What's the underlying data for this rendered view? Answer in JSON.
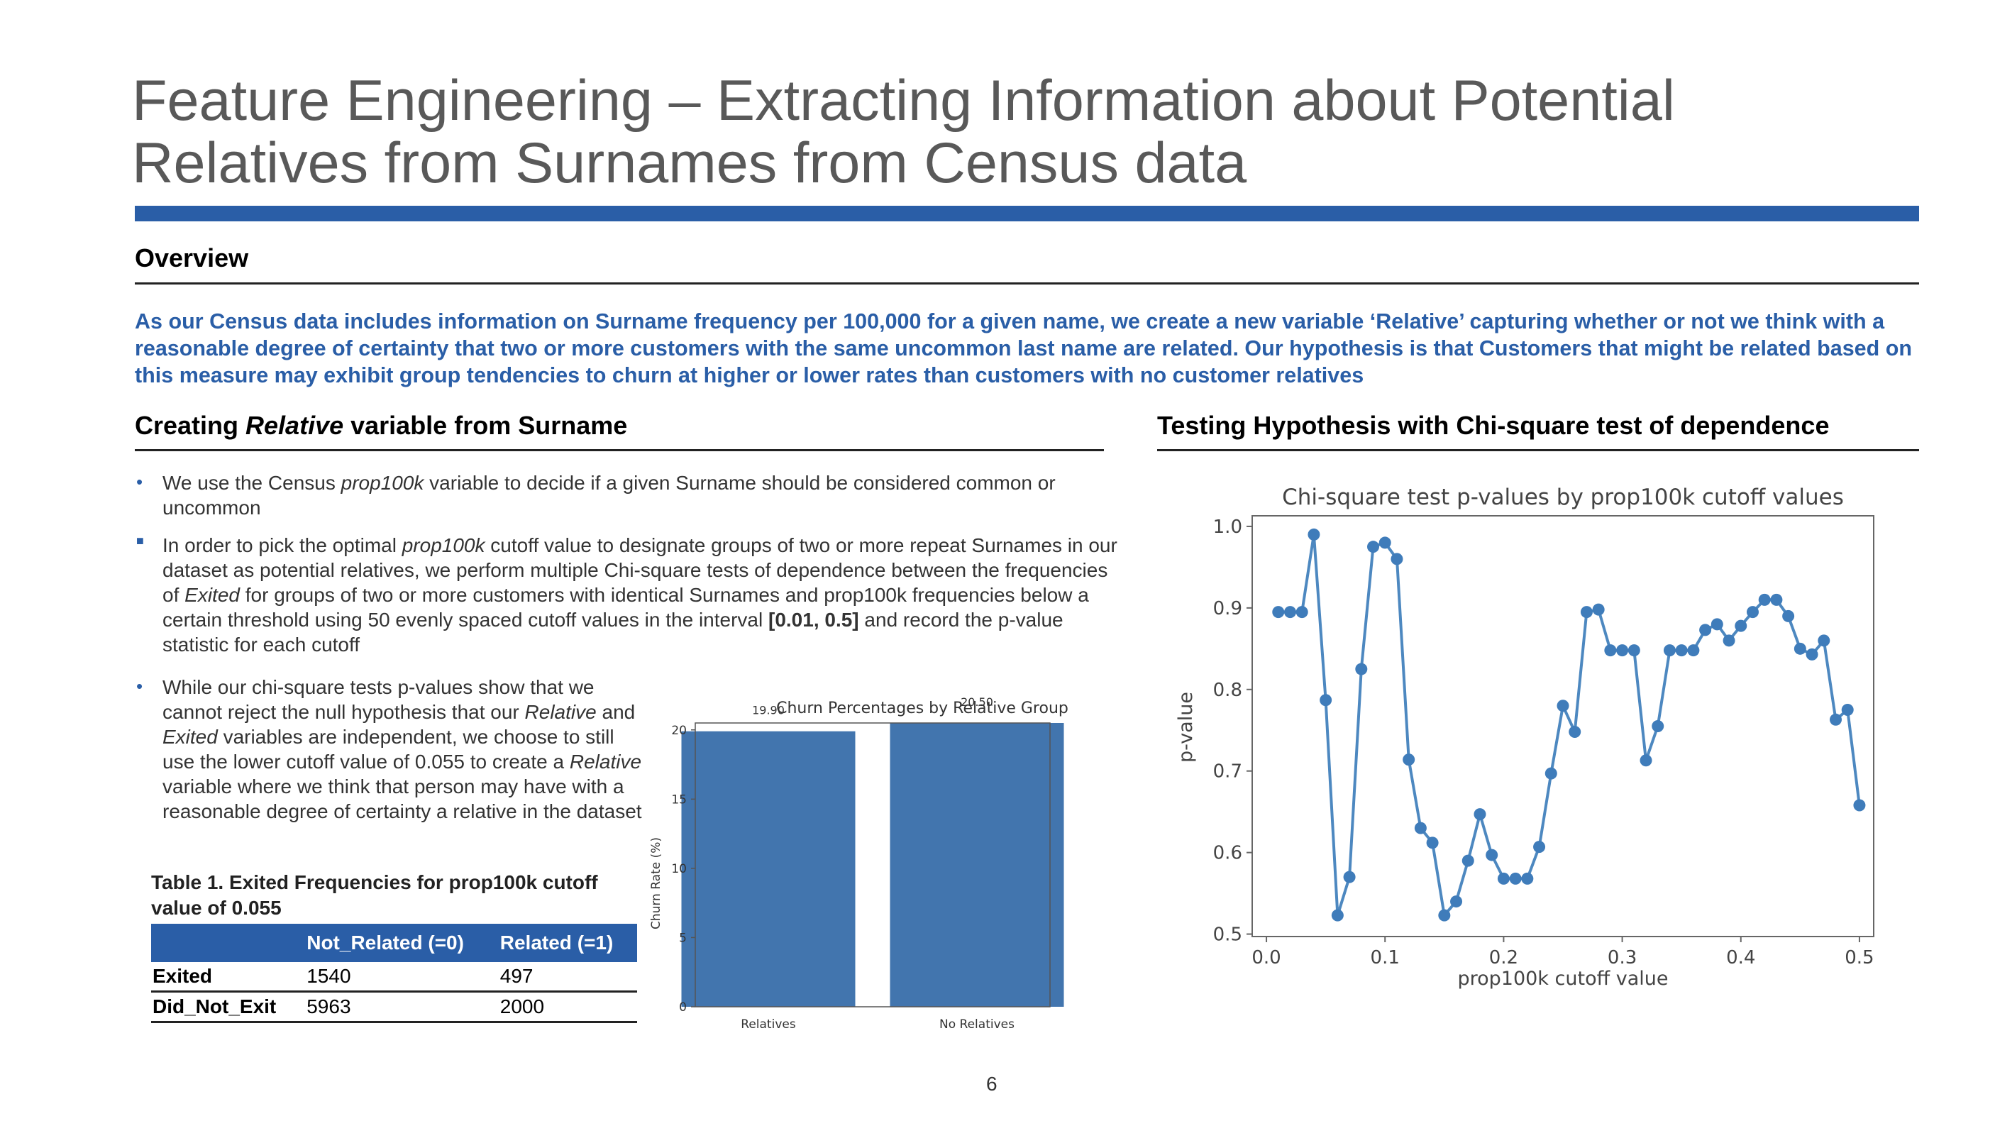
{
  "slide": {
    "title_line1": "Feature Engineering – Extracting Information about Potential",
    "title_line2": "Relatives from Surnames from Census data",
    "overview_title": "Overview",
    "overview_text": "As our Census data includes information on Surname frequency per 100,000 for a given name, we create a new variable ‘Relative’ capturing whether or not we think with a reasonable degree of certainty that two or more customers with the same uncommon last name are related. Our hypothesis is that Customers that might be related based on this measure may exhibit group tendencies to churn at higher or lower rates than customers with no customer relatives",
    "left_title_pre": "Creating ",
    "left_title_em": "Relative",
    "left_title_post": " variable from Surname",
    "right_title": "Testing Hypothesis with Chi-square test of dependence",
    "page_number": "6",
    "colors": {
      "accent": "#2a5ea7",
      "bar": "#4275ae",
      "line": "#4d88c0",
      "title_gray": "#595959"
    }
  },
  "bullets": {
    "b1_a": "We use the Census ",
    "b1_em": "prop100k",
    "b1_b": " variable to decide if a given Surname should be considered common or uncommon",
    "b2_a": "In order to pick the optimal ",
    "b2_em1": "prop100k",
    "b2_b": " cutoff value to designate groups of two or more repeat Surnames in our dataset as potential relatives, we perform multiple Chi-square tests of dependence between the frequencies of ",
    "b2_em2": "Exited",
    "b2_c": " for groups of two or more customers with identical Surnames and prop100k frequencies below a certain threshold using 50 evenly spaced cutoff values in the interval ",
    "b2_strong": "[0.01, 0.5]",
    "b2_d": " and record the p-value statistic for each cutoff",
    "b3_a": "While our chi-square tests p-values show that we cannot reject the null hypothesis that our ",
    "b3_em1": "Relative",
    "b3_b": " and ",
    "b3_em2": "Exited",
    "b3_c": " variables are independent, we choose to still use the lower cutoff value of 0.055 to create a ",
    "b3_em3": "Relative",
    "b3_d": " variable where we think that person may have with a reasonable degree of certainty a relative in the dataset"
  },
  "table": {
    "caption": "Table 1. Exited Frequencies for prop100k cutoff value of 0.055",
    "headers": [
      "",
      "Not_Related (=0)",
      "Related (=1)"
    ],
    "rows": [
      [
        "Exited",
        "1540",
        "497"
      ],
      [
        "Did_Not_Exit",
        "5963",
        "2000"
      ]
    ]
  },
  "chart_data": [
    {
      "type": "bar",
      "title": "Churn Percentages by Relative Group",
      "categories": [
        "Relatives",
        "No Relatives"
      ],
      "values": [
        19.9,
        20.5
      ],
      "data_labels": [
        "19.90",
        "20.50"
      ],
      "xlabel": "",
      "ylabel": "Churn Rate (%)",
      "ylim": [
        0,
        20.5
      ],
      "yticks": [
        0,
        5,
        10,
        15,
        20
      ],
      "grid": false
    },
    {
      "type": "line",
      "title": "Chi-square test p-values by prop100k cutoff values",
      "xlabel": "prop100k cutoff value",
      "ylabel": "p-value",
      "xlim": [
        -0.012,
        0.512
      ],
      "ylim": [
        0.497,
        1.013
      ],
      "xticks": [
        0.0,
        0.1,
        0.2,
        0.3,
        0.4,
        0.5
      ],
      "xtick_labels": [
        "0.0",
        "0.1",
        "0.2",
        "0.3",
        "0.4",
        "0.5"
      ],
      "yticks": [
        0.5,
        0.6,
        0.7,
        0.8,
        0.9,
        1.0
      ],
      "ytick_labels": [
        "0.5",
        "0.6",
        "0.7",
        "0.8",
        "0.9",
        "1.0"
      ],
      "grid": false,
      "x": [
        0.01,
        0.02,
        0.03,
        0.04,
        0.05,
        0.06,
        0.07,
        0.08,
        0.09,
        0.1,
        0.11,
        0.12,
        0.13,
        0.14,
        0.15,
        0.16,
        0.17,
        0.18,
        0.19,
        0.2,
        0.21,
        0.22,
        0.23,
        0.24,
        0.25,
        0.26,
        0.27,
        0.28,
        0.29,
        0.3,
        0.31,
        0.32,
        0.33,
        0.34,
        0.35,
        0.36,
        0.37,
        0.38,
        0.39,
        0.4,
        0.41,
        0.42,
        0.43,
        0.44,
        0.45,
        0.46,
        0.47,
        0.48,
        0.49,
        0.5
      ],
      "y": [
        0.895,
        0.895,
        0.895,
        0.99,
        0.787,
        0.523,
        0.57,
        0.825,
        0.975,
        0.98,
        0.96,
        0.714,
        0.63,
        0.612,
        0.523,
        0.54,
        0.59,
        0.647,
        0.597,
        0.568,
        0.568,
        0.568,
        0.607,
        0.697,
        0.78,
        0.748,
        0.895,
        0.898,
        0.848,
        0.848,
        0.848,
        0.713,
        0.755,
        0.848,
        0.848,
        0.848,
        0.873,
        0.88,
        0.86,
        0.878,
        0.895,
        0.91,
        0.91,
        0.89,
        0.85,
        0.843,
        0.86,
        0.763,
        0.775,
        0.658
      ]
    }
  ]
}
